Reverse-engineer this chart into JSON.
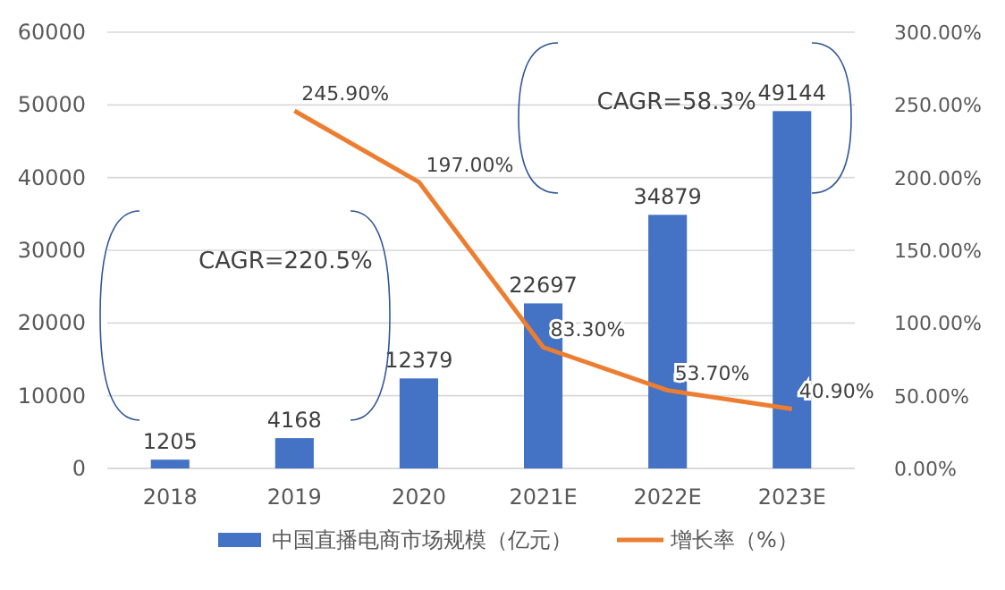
{
  "chart_data": {
    "type": "bar",
    "categories": [
      "2018",
      "2019",
      "2020",
      "2021E",
      "2022E",
      "2023E"
    ],
    "series": [
      {
        "name": "中国直播电商市场规模（亿元）",
        "color": "#4472c4",
        "values": [
          1205,
          4168,
          12379,
          22697,
          34879,
          49144
        ],
        "value_labels": [
          "1205",
          "4168",
          "12379",
          "22697",
          "34879",
          "49144"
        ]
      },
      {
        "name": "增长率（%）",
        "type": "line",
        "axis": "y2",
        "color": "#ed7d31",
        "values": [
          null,
          245.9,
          197,
          83.3,
          53.7,
          40.9
        ],
        "value_labels": [
          null,
          "245.90%",
          "197.00%",
          "83.30%",
          "53.70%",
          "40.90%"
        ]
      }
    ],
    "ylim": [
      0,
      60000
    ],
    "yticks": [
      0,
      10000,
      20000,
      30000,
      40000,
      50000,
      60000
    ],
    "y2lim": [
      0,
      300
    ],
    "y2ticks": [
      {
        "value": 0,
        "label": "0.00%"
      },
      {
        "value": 50,
        "label": "50.00%"
      },
      {
        "value": 100,
        "label": "100.00%"
      },
      {
        "value": 150,
        "label": "150.00%"
      },
      {
        "value": 200,
        "label": "200.00%"
      },
      {
        "value": 250,
        "label": "250.00%"
      },
      {
        "value": 300,
        "label": "300.00%"
      }
    ],
    "annotations": [
      "CAGR=220.5%",
      "CAGR=58.3%"
    ],
    "grid": "y",
    "legend": "bottom",
    "marker": "none",
    "line_style": "solid"
  }
}
